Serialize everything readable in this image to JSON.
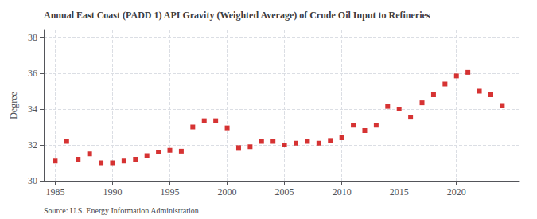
{
  "chart_data": {
    "type": "scatter",
    "title": "Annual East Coast (PADD 1) API Gravity (Weighted Average) of Crude Oil Input to Refineries",
    "ylabel": "Degree",
    "annotation": "Source: U.S. Energy Information Administration",
    "x": [
      1985,
      1986,
      1987,
      1988,
      1989,
      1990,
      1991,
      1992,
      1993,
      1994,
      1995,
      1996,
      1997,
      1998,
      1999,
      2000,
      2001,
      2002,
      2003,
      2004,
      2005,
      2006,
      2007,
      2008,
      2009,
      2010,
      2011,
      2012,
      2013,
      2014,
      2015,
      2016,
      2017,
      2018,
      2019,
      2020,
      2021,
      2022,
      2023,
      2024
    ],
    "values": [
      31.1,
      32.2,
      31.2,
      31.5,
      31.0,
      31.0,
      31.1,
      31.2,
      31.4,
      31.6,
      31.7,
      31.65,
      33.0,
      33.35,
      33.35,
      32.95,
      31.85,
      31.9,
      32.2,
      32.2,
      32.0,
      32.1,
      32.2,
      32.1,
      32.25,
      32.4,
      33.1,
      32.8,
      33.1,
      34.15,
      34.0,
      33.55,
      34.35,
      34.8,
      35.4,
      35.85,
      36.05,
      35.0,
      34.8,
      34.2
    ],
    "color": "#cc0000",
    "marker": "square",
    "xlim": [
      1984.0,
      2025.5
    ],
    "ylim": [
      30,
      38.4
    ],
    "xticks": [
      1985,
      1990,
      1995,
      2000,
      2005,
      2010,
      2015,
      2020
    ],
    "yticks": [
      30,
      32,
      34,
      36,
      38
    ],
    "grid": true
  }
}
